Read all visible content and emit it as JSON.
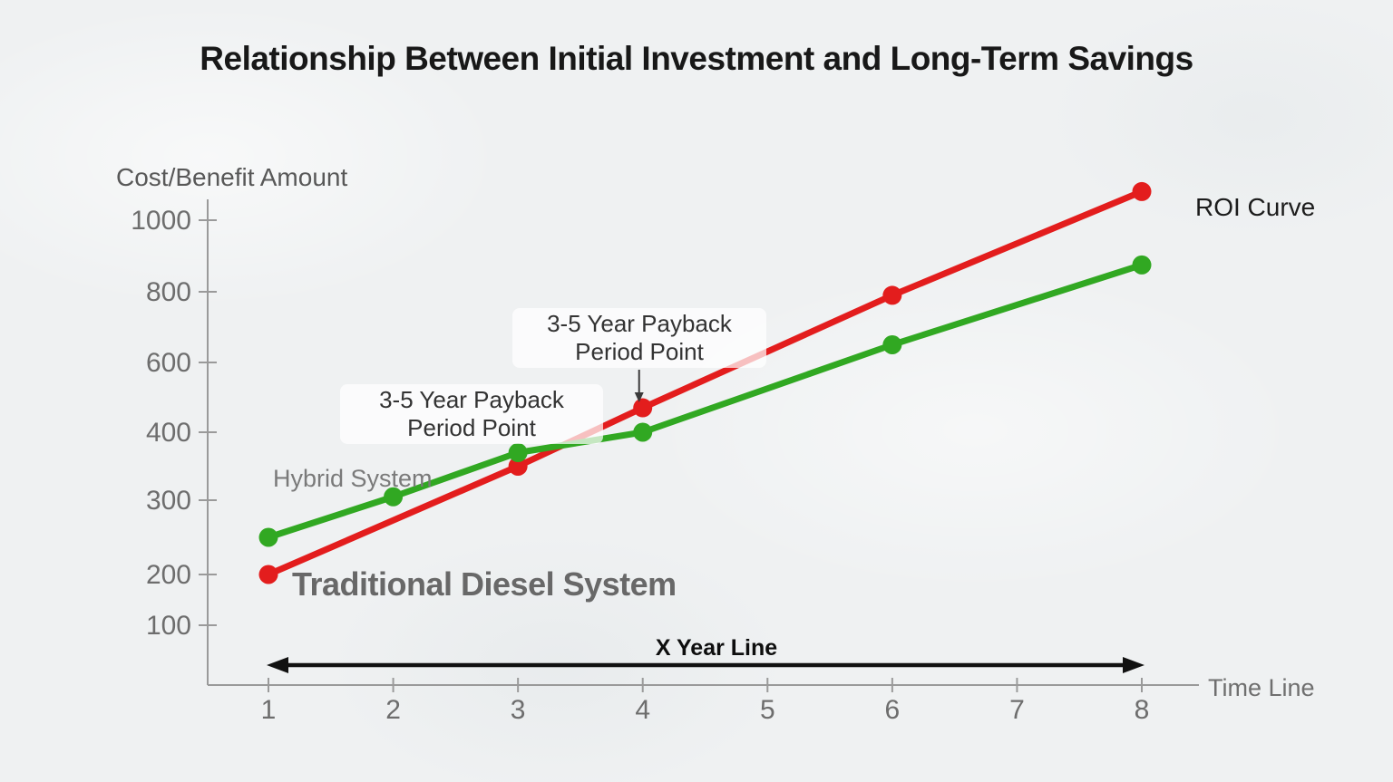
{
  "title": "Relationship Between Initial Investment and Long-Term Savings",
  "labels": {
    "y_axis_title": "Cost/Benefit Amount",
    "x_axis_title": "Time Line",
    "x_arrow_label": "X Year Line",
    "roi_curve": "ROI Curve",
    "hybrid_system": "Hybrid System",
    "traditional_diesel": "Traditional Diesel System",
    "payback_line1": "3-5 Year Payback",
    "payback_line2": "Period Point"
  },
  "colors": {
    "red_series": "#e31d1d",
    "green_series": "#31a822",
    "axis": "#9a9a9a",
    "tick_text": "#6d6d6d",
    "arrow": "#111111",
    "annotation_arrow": "#3a3a3a"
  },
  "chart_data": {
    "type": "line",
    "title": "Relationship Between Initial Investment and Long-Term Savings",
    "xlabel": "Time Line",
    "ylabel": "Cost/Benefit Amount",
    "x_ticks": [
      1,
      2,
      3,
      4,
      5,
      6,
      7,
      8
    ],
    "y_ticks": [
      100,
      200,
      300,
      400,
      600,
      800,
      1000
    ],
    "xlim": [
      1,
      8
    ],
    "ylim": [
      100,
      1090
    ],
    "grid": false,
    "legend_position": "labels-on-chart",
    "y_scale_note": "non-linear as drawn: ticks 100,200,300,400,600,800,1000 nearly evenly spaced",
    "series": [
      {
        "name": "Traditional Diesel System (ROI Curve)",
        "color": "#e31d1d",
        "x": [
          1,
          3,
          4,
          6,
          8
        ],
        "values": [
          200,
          350,
          470,
          790,
          1080
        ]
      },
      {
        "name": "Hybrid System",
        "color": "#31a822",
        "x": [
          1,
          2,
          3,
          4,
          6,
          8
        ],
        "values": [
          250,
          305,
          370,
          400,
          650,
          875
        ]
      }
    ],
    "annotations": [
      {
        "text": "3-5 Year Payback Period Point",
        "near_x": 3,
        "series": "crossing of both lines"
      },
      {
        "text": "3-5 Year Payback Period Point",
        "near_x": 4,
        "series": "Traditional Diesel System",
        "arrow": "down to red point at year 4"
      }
    ],
    "x_axis_arrow_label": "X Year Line"
  }
}
